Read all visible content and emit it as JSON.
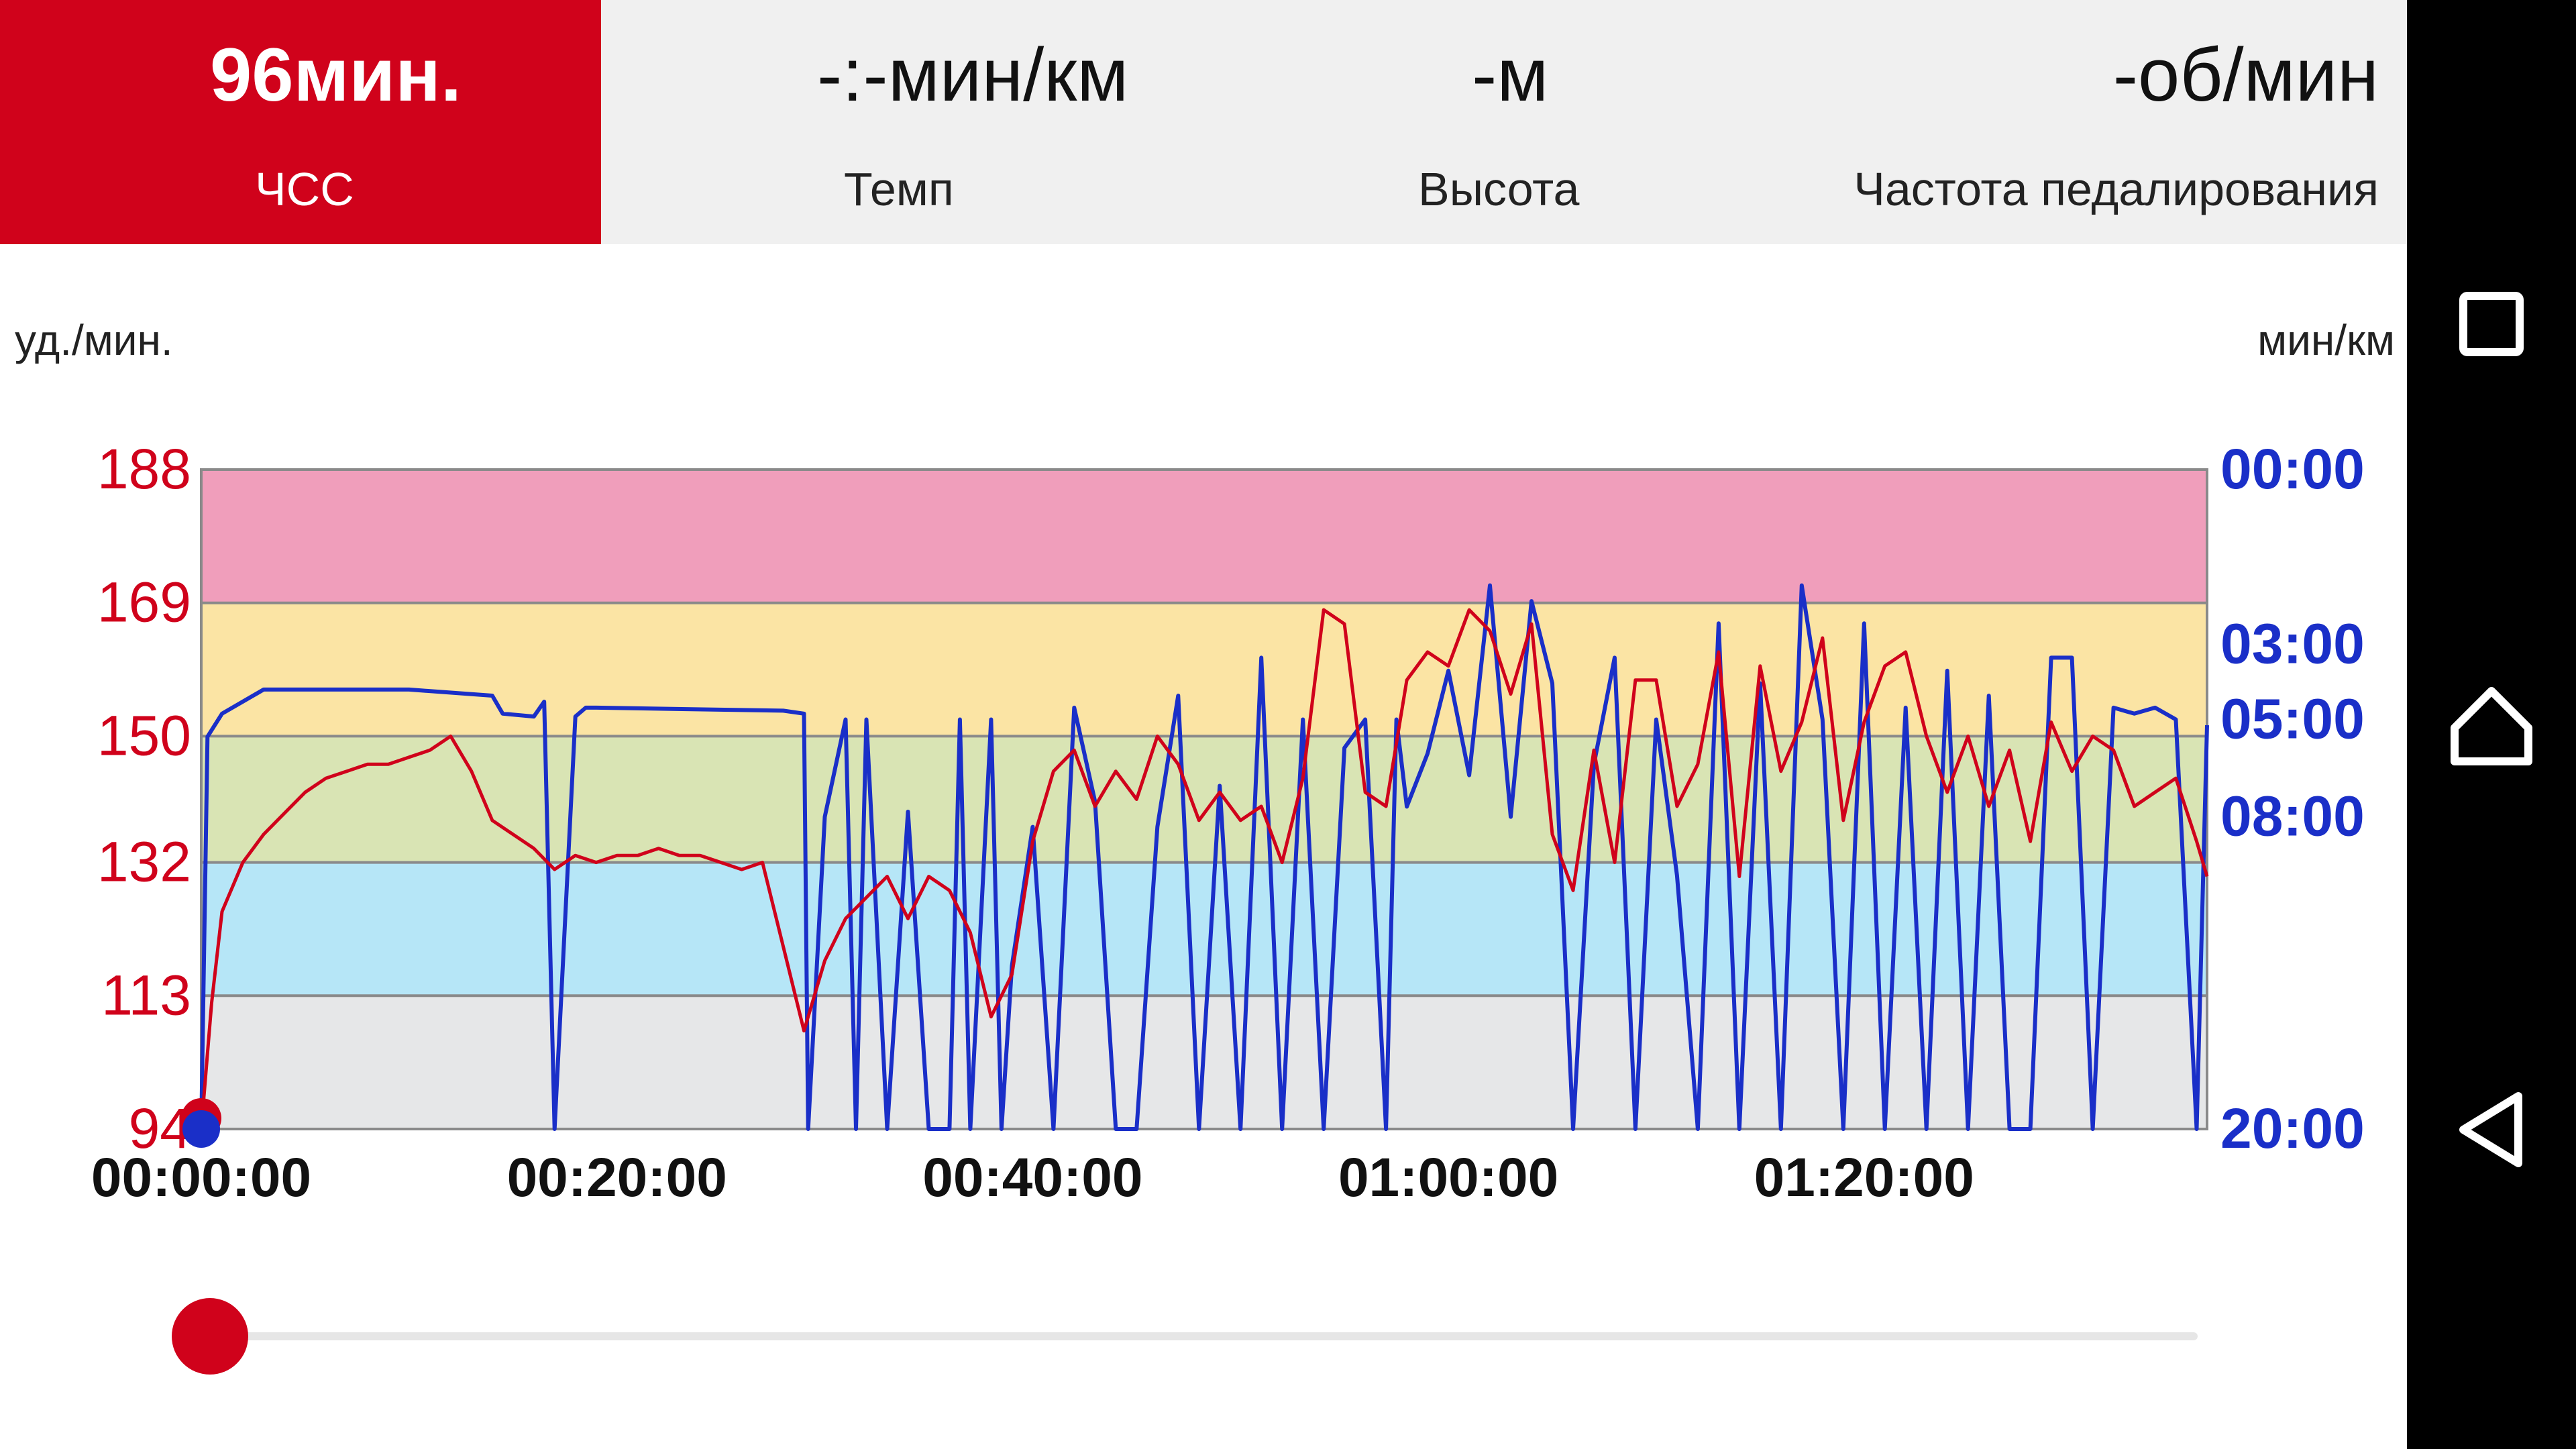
{
  "metrics": [
    {
      "value": "96мин.",
      "label": "ЧСС",
      "active": true
    },
    {
      "value": "-:-мин/км",
      "label": "Темп",
      "active": false
    },
    {
      "value": "-м",
      "label": "Высота",
      "active": false
    },
    {
      "value": "-об/мин",
      "label": "Частота педалирования",
      "active": false
    }
  ],
  "axis_units": {
    "left": "уд./мин.",
    "right": "мин/км"
  },
  "colors": {
    "heart_rate": "#d0021b",
    "pace": "#1a2fc8",
    "zone_max": "#f09ebb",
    "zone_hard": "#fbe4a4",
    "zone_moderate": "#d9e4b4",
    "zone_light": "#b6e6f7",
    "zone_very_light": "#e6e7e8"
  },
  "chart_data": {
    "type": "line",
    "xlabel": "",
    "ylabel": "уд./мин.",
    "y2label": "мин/км",
    "x_ticks": [
      "00:00:00",
      "00:20:00",
      "00:40:00",
      "01:00:00",
      "01:20:00"
    ],
    "x_range_minutes": [
      0,
      96.5
    ],
    "y_left_ticks": [
      "188",
      "169",
      "150",
      "132",
      "113",
      "94"
    ],
    "y_left_range": [
      94,
      188
    ],
    "y_right_ticks": [
      "00:00",
      "03:00",
      "05:00",
      "08:00",
      "20:00"
    ],
    "zones_bpm": [
      {
        "from": 169,
        "to": 188,
        "color": "zone_max"
      },
      {
        "from": 150,
        "to": 169,
        "color": "zone_hard"
      },
      {
        "from": 132,
        "to": 150,
        "color": "zone_moderate"
      },
      {
        "from": 113,
        "to": 132,
        "color": "zone_light"
      },
      {
        "from": 94,
        "to": 113,
        "color": "zone_very_light"
      }
    ],
    "series": [
      {
        "key": "heart_rate",
        "axis": "left",
        "x_minutes": [
          0,
          0.5,
          1,
          2,
          3,
          4,
          5,
          6,
          7,
          8,
          9,
          10,
          11,
          12,
          13,
          14,
          15,
          16,
          17,
          18,
          19,
          20,
          21,
          22,
          23,
          24,
          25,
          26,
          27,
          28,
          29,
          30,
          31,
          32,
          33,
          34,
          35,
          36,
          37,
          38,
          39,
          40,
          41,
          42,
          43,
          44,
          45,
          46,
          47,
          48,
          49,
          50,
          51,
          52,
          53,
          54,
          55,
          56,
          57,
          58,
          59,
          60,
          61,
          62,
          63,
          64,
          65,
          66,
          67,
          68,
          69,
          70,
          71,
          72,
          73,
          74,
          75,
          76,
          77,
          78,
          79,
          80,
          81,
          82,
          83,
          84,
          85,
          86,
          87,
          88,
          89,
          90,
          91,
          92,
          93,
          94,
          95,
          96,
          96.5
        ],
        "values": [
          94,
          112,
          125,
          132,
          136,
          139,
          142,
          144,
          145,
          146,
          146,
          147,
          148,
          150,
          145,
          138,
          136,
          134,
          131,
          133,
          132,
          133,
          133,
          134,
          133,
          133,
          132,
          131,
          132,
          120,
          108,
          118,
          124,
          127,
          130,
          124,
          130,
          128,
          122,
          110,
          116,
          135,
          145,
          148,
          140,
          145,
          141,
          150,
          146,
          138,
          142,
          138,
          140,
          132,
          144,
          168,
          166,
          142,
          140,
          158,
          162,
          160,
          168,
          165,
          156,
          166,
          136,
          128,
          148,
          132,
          158,
          158,
          140,
          146,
          162,
          130,
          160,
          145,
          152,
          164,
          138,
          152,
          160,
          162,
          150,
          142,
          150,
          140,
          148,
          135,
          152,
          145,
          150,
          148,
          140,
          142,
          144,
          135,
          130
        ]
      },
      {
        "key": "pace",
        "axis": "right",
        "x_minutes": [
          0,
          0.3,
          1,
          3,
          3.5,
          10,
          14,
          14.5,
          16,
          16.5,
          17,
          18,
          18.5,
          19,
          28,
          29,
          29.2,
          30,
          31,
          31.5,
          32,
          33,
          34,
          35,
          36,
          36.5,
          37,
          38,
          38.5,
          39,
          40,
          41,
          42,
          43,
          44,
          45,
          46,
          47,
          48,
          49,
          50,
          51,
          52,
          53,
          54,
          55,
          56,
          57,
          57.5,
          58,
          59,
          60,
          61,
          62,
          63,
          64,
          65,
          66,
          67,
          68,
          69,
          70,
          71,
          72,
          73,
          74,
          75,
          76,
          77,
          78,
          79,
          80,
          81,
          82,
          83,
          84,
          85,
          86,
          87,
          88,
          89,
          90,
          91,
          92,
          93,
          94,
          95,
          96,
          96.5
        ],
        "pace_seconds": [
          1200,
          330,
          290,
          250,
          250,
          250,
          260,
          290,
          295,
          270,
          1200,
          295,
          280,
          280,
          285,
          290,
          1200,
          480,
          300,
          1200,
          300,
          1200,
          470,
          1200,
          1200,
          300,
          1200,
          300,
          1200,
          800,
          500,
          1200,
          280,
          450,
          1200,
          1200,
          500,
          260,
          1200,
          420,
          1200,
          200,
          1200,
          300,
          1200,
          350,
          300,
          1200,
          300,
          460,
          360,
          220,
          400,
          100,
          480,
          120,
          240,
          1200,
          380,
          200,
          1200,
          300,
          600,
          1200,
          150,
          1200,
          240,
          1200,
          100,
          300,
          1200,
          150,
          1200,
          280,
          1200,
          220,
          1200,
          260,
          1200,
          1200,
          200,
          200,
          1200,
          280,
          290,
          280,
          300,
          1200,
          310
        ]
      }
    ]
  }
}
